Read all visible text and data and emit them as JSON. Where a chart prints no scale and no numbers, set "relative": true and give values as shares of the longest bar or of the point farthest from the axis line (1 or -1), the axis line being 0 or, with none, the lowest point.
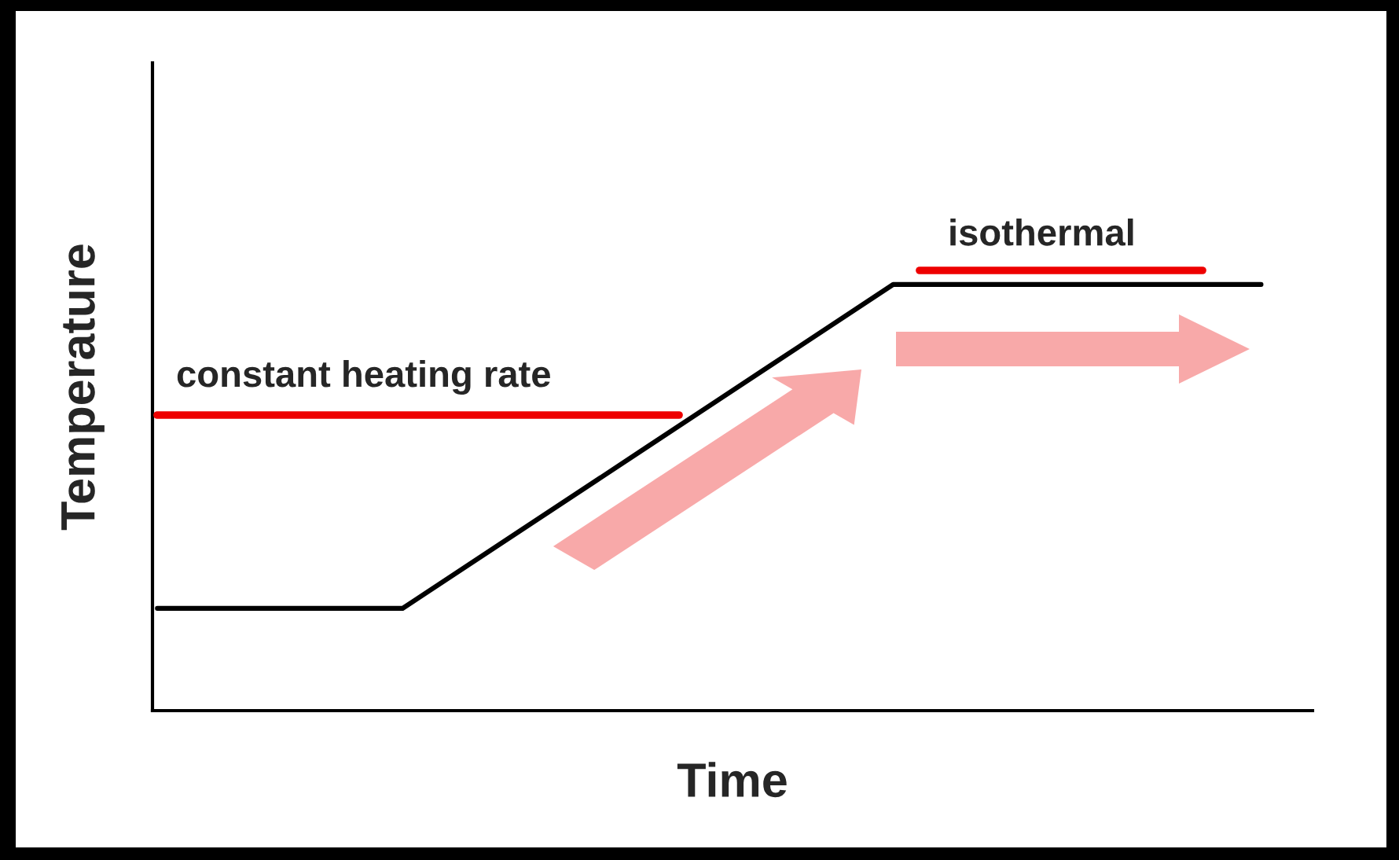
{
  "chart_data": {
    "type": "line",
    "relative": true,
    "xlabel": "Time",
    "ylabel": "Temperature",
    "categories": [
      null,
      null,
      null,
      null,
      null,
      null,
      null,
      null,
      null,
      null
    ],
    "series": [
      {
        "color": "#000000",
        "values": [
          0.24,
          0.24,
          0.24,
          0.43,
          0.62,
          0.81,
          1,
          1,
          1,
          1
        ]
      }
    ],
    "annotations": [
      "constant heating rate",
      "isothermal"
    ],
    "grid": false,
    "legend": false
  }
}
